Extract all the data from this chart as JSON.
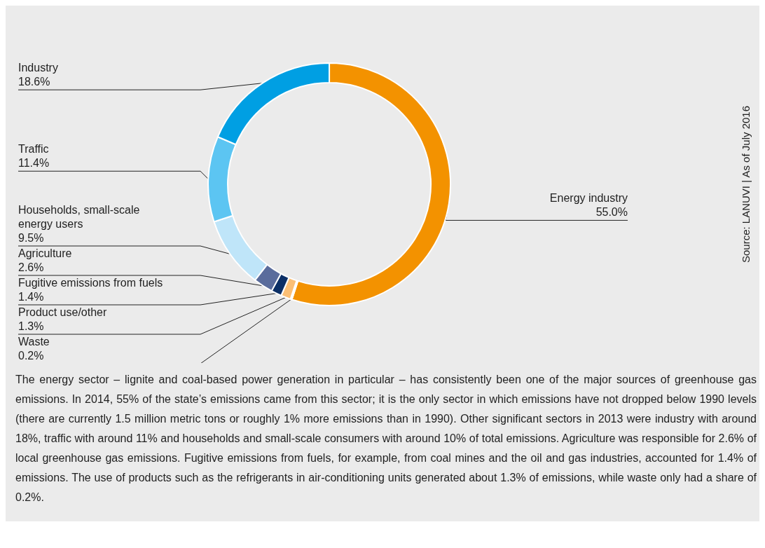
{
  "chart_data": {
    "type": "donut",
    "categories": [
      "Energy industry",
      "Waste",
      "Product use/other",
      "Fugitive emissions from fuels",
      "Agriculture",
      "Households, small-scale energy users",
      "Traffic",
      "Industry"
    ],
    "values": [
      55.0,
      0.2,
      1.3,
      1.4,
      2.6,
      9.5,
      11.4,
      18.6
    ],
    "value_labels": [
      "55.0%",
      "0.2%",
      "1.3%",
      "1.4%",
      "2.6%",
      "9.5%",
      "11.4%",
      "18.6%"
    ],
    "colors": [
      "#f39200",
      "#f6dcc0",
      "#fbbf75",
      "#0b2f66",
      "#5a6c9c",
      "#bfe5f9",
      "#5cc5f2",
      "#009fe3"
    ],
    "legend": false,
    "annotations": [
      "Source: LANUVI | As of July 2016",
      "The energy sector – lignite and coal-based power generation in particular – has consistently been one of the major sources of greenhouse gas emissions. In 2014, 55% of the state’s emissions came from this sector; it is the only sector in which emissions have not dropped below 1990 levels (there are currently 1.5 million metric tons or roughly 1% more emissions than in 1990). Other significant sectors in 2013 were industry with around 18%, traffic with around 11% and households and small-scale consumers with around 10% of total emissions. Agriculture was responsible for 2.6% of local greenhouse gas emissions. Fugitive emissions from fuels, for example, from coal mines and the oil and gas industries, accounted for 1.4% of emissions. The use of products such as the refrigerants in air-conditioning units generated about 1.3% of emissions, while waste only had a share of 0.2%."
    ]
  }
}
